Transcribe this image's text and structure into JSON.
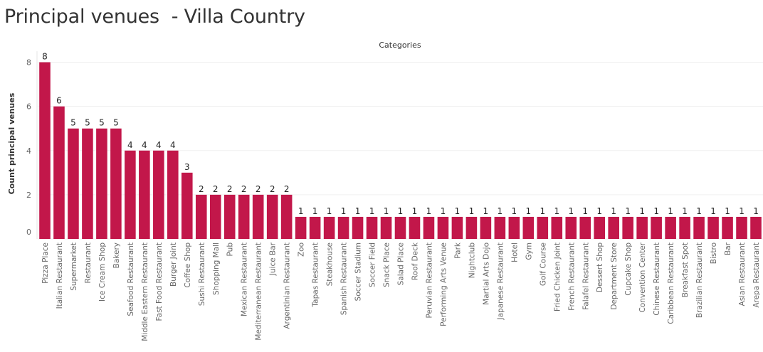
{
  "page": {
    "title": "Principal venues  - Villa Country"
  },
  "chart_data": {
    "type": "bar",
    "title": "Principal venues  - Villa Country",
    "xlabel": "Categories",
    "ylabel": "Count principal venues",
    "ylim": [
      0,
      8.5
    ],
    "yticks": [
      0,
      2,
      4,
      6,
      8
    ],
    "grid": true,
    "bar_color": "#c2174a",
    "categories": [
      "Pizza Place",
      "Italian Restaurant",
      "Supermarket",
      "Restaurant",
      "Ice Cream Shop",
      "Bakery",
      "Seafood Restaurant",
      "Middle Eastern Restaurant",
      "Fast Food Restaurant",
      "Burger Joint",
      "Coffee Shop",
      "Sushi Restaurant",
      "Shopping Mall",
      "Pub",
      "Mexican Restaurant",
      "Mediterranean Restaurant",
      "Juice Bar",
      "Argentinian Restaurant",
      "Zoo",
      "Tapas Restaurant",
      "Steakhouse",
      "Spanish Restaurant",
      "Soccer Stadium",
      "Soccer Field",
      "Snack Place",
      "Salad Place",
      "Roof Deck",
      "Peruvian Restaurant",
      "Performing Arts Venue",
      "Park",
      "Nightclub",
      "Martial Arts Dojo",
      "Japanese Restaurant",
      "Hotel",
      "Gym",
      "Golf Course",
      "Fried Chicken Joint",
      "French Restaurant",
      "Falafel Restaurant",
      "Dessert Shop",
      "Department Store",
      "Cupcake Shop",
      "Convention Center",
      "Chinese Restaurant",
      "Caribbean Restaurant",
      "Breakfast Spot",
      "Brazilian Restaurant",
      "Bistro",
      "Bar",
      "Asian Restaurant",
      "Arepa Restaurant"
    ],
    "values": [
      8,
      6,
      5,
      5,
      5,
      5,
      4,
      4,
      4,
      4,
      3,
      2,
      2,
      2,
      2,
      2,
      2,
      2,
      1,
      1,
      1,
      1,
      1,
      1,
      1,
      1,
      1,
      1,
      1,
      1,
      1,
      1,
      1,
      1,
      1,
      1,
      1,
      1,
      1,
      1,
      1,
      1,
      1,
      1,
      1,
      1,
      1,
      1,
      1,
      1,
      1
    ]
  }
}
